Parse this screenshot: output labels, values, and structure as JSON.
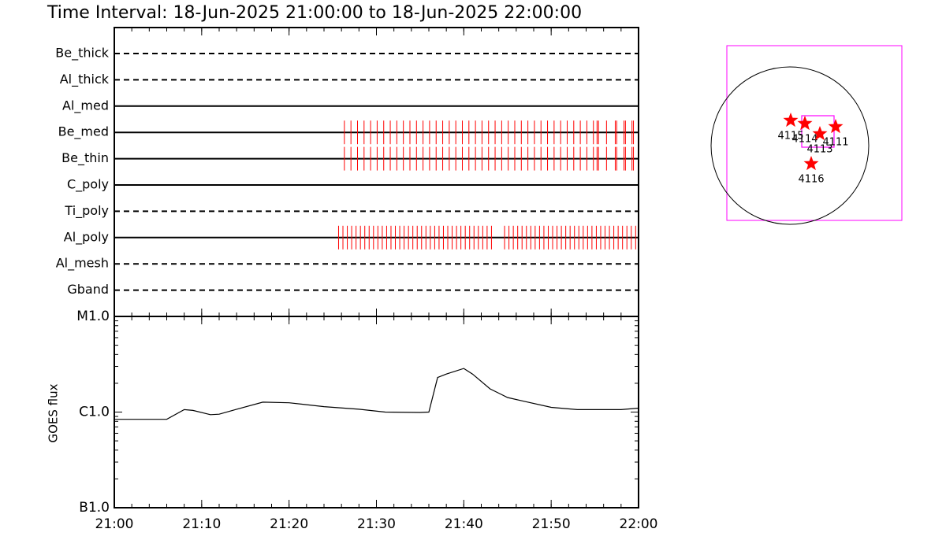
{
  "title": "Time Interval: 18-Jun-2025 21:00:00 to 18-Jun-2025 22:00:00",
  "timeline": {
    "filters": [
      {
        "name": "Be_thick",
        "line": "dashed",
        "exposures": []
      },
      {
        "name": "Al_thick",
        "line": "dashed",
        "exposures": []
      },
      {
        "name": "Al_med",
        "line": "solid",
        "exposures": []
      },
      {
        "name": "Be_med",
        "line": "solid",
        "exposures": [
          "21:26:20",
          "21:27:05",
          "21:27:50",
          "21:28:35",
          "21:29:20",
          "21:30:05",
          "21:30:50",
          "21:31:35",
          "21:32:20",
          "21:33:05",
          "21:33:50",
          "21:34:35",
          "21:35:20",
          "21:36:05",
          "21:36:50",
          "21:37:35",
          "21:38:20",
          "21:39:05",
          "21:39:50",
          "21:40:35",
          "21:41:20",
          "21:42:05",
          "21:42:50",
          "21:43:35",
          "21:44:20",
          "21:45:05",
          "21:45:50",
          "21:46:35",
          "21:47:20",
          "21:48:05",
          "21:48:50",
          "21:49:35",
          "21:50:20",
          "21:51:05",
          "21:51:50",
          "21:52:35",
          "21:53:20",
          "21:54:05",
          "21:54:50",
          "21:55:15",
          "21:55:25",
          "21:56:20",
          "21:57:20",
          "21:57:30",
          "21:58:20",
          "21:58:30",
          "21:59:15",
          "21:59:25"
        ]
      },
      {
        "name": "Be_thin",
        "line": "solid",
        "exposures": [
          "21:26:20",
          "21:27:05",
          "21:27:50",
          "21:28:35",
          "21:29:20",
          "21:30:05",
          "21:30:50",
          "21:31:35",
          "21:32:20",
          "21:33:05",
          "21:33:50",
          "21:34:35",
          "21:35:20",
          "21:36:05",
          "21:36:50",
          "21:37:35",
          "21:38:20",
          "21:39:05",
          "21:39:50",
          "21:40:35",
          "21:41:20",
          "21:42:05",
          "21:42:50",
          "21:43:35",
          "21:44:20",
          "21:45:05",
          "21:45:50",
          "21:46:35",
          "21:47:20",
          "21:48:05",
          "21:48:50",
          "21:49:35",
          "21:50:20",
          "21:51:05",
          "21:51:50",
          "21:52:35",
          "21:53:20",
          "21:54:05",
          "21:54:50",
          "21:55:15",
          "21:55:25",
          "21:56:20",
          "21:57:20",
          "21:57:30",
          "21:58:20",
          "21:58:30",
          "21:59:15",
          "21:59:25"
        ]
      },
      {
        "name": "C_poly",
        "line": "solid",
        "exposures": []
      },
      {
        "name": "Ti_poly",
        "line": "dashed",
        "exposures": []
      },
      {
        "name": "Al_poly",
        "line": "solid",
        "exposures": [
          "21:25:40",
          "21:26:10",
          "21:26:40",
          "21:27:10",
          "21:27:40",
          "21:28:10",
          "21:28:40",
          "21:29:10",
          "21:29:40",
          "21:30:10",
          "21:30:40",
          "21:31:10",
          "21:31:40",
          "21:32:10",
          "21:32:40",
          "21:33:10",
          "21:33:40",
          "21:34:10",
          "21:34:40",
          "21:35:10",
          "21:35:40",
          "21:36:10",
          "21:36:40",
          "21:37:10",
          "21:37:40",
          "21:38:10",
          "21:38:40",
          "21:39:10",
          "21:39:40",
          "21:40:10",
          "21:40:40",
          "21:41:10",
          "21:41:40",
          "21:42:10",
          "21:42:40",
          "21:43:10",
          "21:44:40",
          "21:45:10",
          "21:45:40",
          "21:46:10",
          "21:46:40",
          "21:47:10",
          "21:47:40",
          "21:48:10",
          "21:48:40",
          "21:49:10",
          "21:49:40",
          "21:50:10",
          "21:50:40",
          "21:51:10",
          "21:51:40",
          "21:52:10",
          "21:52:40",
          "21:53:10",
          "21:53:40",
          "21:54:10",
          "21:54:40",
          "21:55:10",
          "21:55:40",
          "21:56:10",
          "21:56:40",
          "21:57:10",
          "21:57:40",
          "21:58:10",
          "21:58:40",
          "21:59:10",
          "21:59:40"
        ]
      },
      {
        "name": "Al_mesh",
        "line": "dashed",
        "exposures": []
      },
      {
        "name": "Gband",
        "line": "dashed",
        "exposures": []
      }
    ],
    "exposure_color": "#ff0000"
  },
  "chart_data": {
    "type": "line",
    "y_label": "GOES flux",
    "x": [
      "21:00",
      "21:06",
      "21:08",
      "21:09",
      "21:11",
      "21:12",
      "21:14",
      "21:17",
      "21:20",
      "21:24",
      "21:28",
      "21:31",
      "21:35",
      "21:36",
      "21:37",
      "21:38",
      "21:40",
      "21:41",
      "21:43",
      "21:45",
      "21:47",
      "21:50",
      "21:53",
      "21:58",
      "22:00"
    ],
    "series": [
      {
        "color": "#000000",
        "values": [
          8.4e-07,
          8.4e-07,
          1.06e-06,
          1.04e-06,
          9.4e-07,
          9.5e-07,
          1.07e-06,
          1.27e-06,
          1.25e-06,
          1.14e-06,
          1.07e-06,
          1e-06,
          9.9e-07,
          1e-06,
          2.3e-06,
          2.5e-06,
          2.86e-06,
          2.5e-06,
          1.75e-06,
          1.42e-06,
          1.29e-06,
          1.12e-06,
          1.06e-06,
          1.06e-06,
          1.1e-06
        ]
      }
    ],
    "xlim": [
      "21:00",
      "22:00"
    ],
    "xticks": [
      "21:00",
      "21:10",
      "21:20",
      "21:30",
      "21:40",
      "21:50",
      "22:00"
    ],
    "ylim": [
      1e-07,
      1e-05
    ],
    "yticks": [
      {
        "value": 1e-07,
        "label": "B1.0"
      },
      {
        "value": 1e-06,
        "label": "C1.0"
      },
      {
        "value": 1e-05,
        "label": "M1.0"
      }
    ],
    "log_scale": true
  },
  "map": {
    "regions": [
      {
        "label": "4115"
      },
      {
        "label": "4114"
      },
      {
        "label": "4113"
      },
      {
        "label": "4111"
      },
      {
        "label": "4116"
      }
    ],
    "star_color": "#ff0000",
    "box_color": "#ff00ff"
  }
}
